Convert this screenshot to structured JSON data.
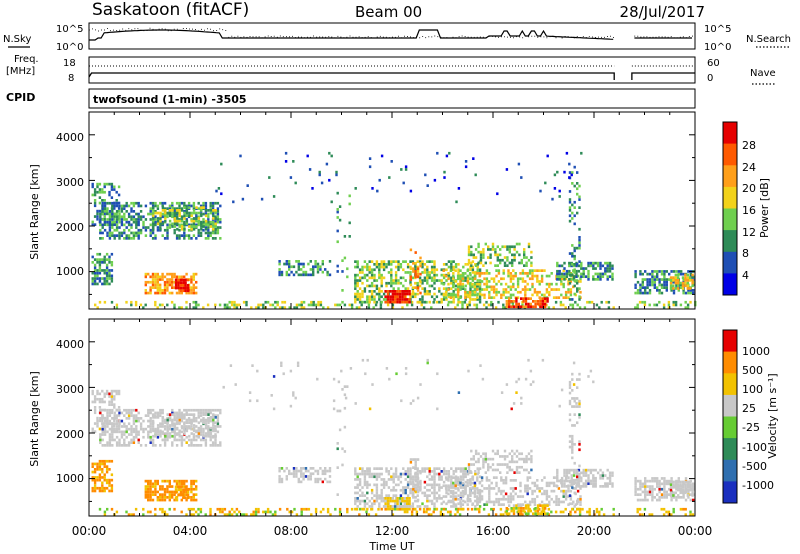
{
  "header": {
    "station": "Saskatoon (fitACF)",
    "beam": "Beam 00",
    "date": "28/Jul/2017"
  },
  "noise_panel": {
    "left_label": "N.Sky",
    "left_ticks": [
      "10^5",
      "10^0"
    ],
    "right_ticks": [
      "10^5",
      "10^0"
    ],
    "right_label": "N.Search"
  },
  "freq_panel": {
    "left_label_1": "Freq.",
    "left_label_2": "[MHz]",
    "left_ticks": [
      "18",
      "8"
    ],
    "right_ticks": [
      "60",
      "0"
    ],
    "right_label": "Nave"
  },
  "cpid_label": "CPID",
  "program": "twofsound (1-min) -3505",
  "chart_data": [
    {
      "type": "heatmap",
      "name": "power",
      "ylabel": "Slant Range [km]",
      "yticks": [
        "4000",
        "3000",
        "2000",
        "1000"
      ],
      "colorbar_label": "Power [dB]",
      "colorbar_ticks": [
        "28",
        "24",
        "20",
        "16",
        "12",
        "8",
        "4"
      ],
      "colors": [
        "#0000e6",
        "#1f4fb4",
        "#2e8b57",
        "#6fcf4f",
        "#f2d21b",
        "#ff9f1a",
        "#ff5a00",
        "#e60000"
      ]
    },
    {
      "type": "heatmap",
      "name": "velocity",
      "ylabel": "Slant Range [km]",
      "yticks": [
        "4000",
        "3000",
        "2000",
        "1000"
      ],
      "colorbar_label": "Velocity [m s⁻¹]",
      "colorbar_ticks": [
        "1000",
        "500",
        "100",
        "25",
        "-25",
        "-100",
        "-500",
        "-1000"
      ],
      "colors": [
        "#1a2fbf",
        "#2f6fb0",
        "#2e8b57",
        "#66cc33",
        "#c8c8c8",
        "#f2c200",
        "#ff8c00",
        "#e60000"
      ]
    }
  ],
  "x_axis": {
    "ticks": [
      "00:00",
      "04:00",
      "08:00",
      "12:00",
      "16:00",
      "20:00",
      "00:00"
    ],
    "label": "Time UT"
  }
}
